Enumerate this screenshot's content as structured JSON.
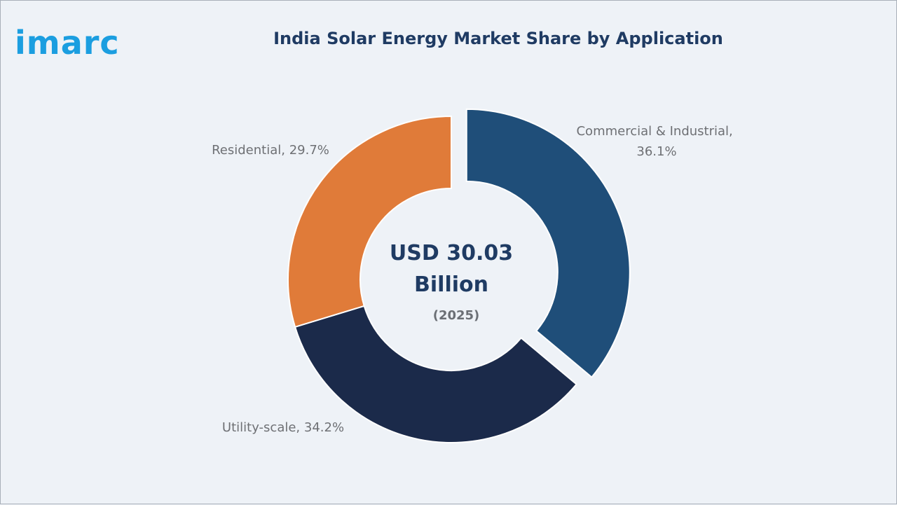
{
  "brand": {
    "logo_text": "imarc",
    "color": "#1b9ee0"
  },
  "chart_data": {
    "type": "pie",
    "title": "India Solar Energy Market Share by Application",
    "center_text": {
      "line1": "USD 30.03",
      "line2": "Billion",
      "line3": "(2025)"
    },
    "slices": [
      {
        "label": "Commercial & Industrial",
        "percent_text": "36.1%",
        "value": 36.1,
        "color": "#1f4e79",
        "exploded": true
      },
      {
        "label": "Utility-scale",
        "percent_text": "34.2%",
        "value": 34.2,
        "color": "#1b2a4a",
        "exploded": false
      },
      {
        "label": "Residential",
        "percent_text": "29.7%",
        "value": 29.7,
        "color": "#e07b39",
        "exploded": false
      }
    ]
  }
}
